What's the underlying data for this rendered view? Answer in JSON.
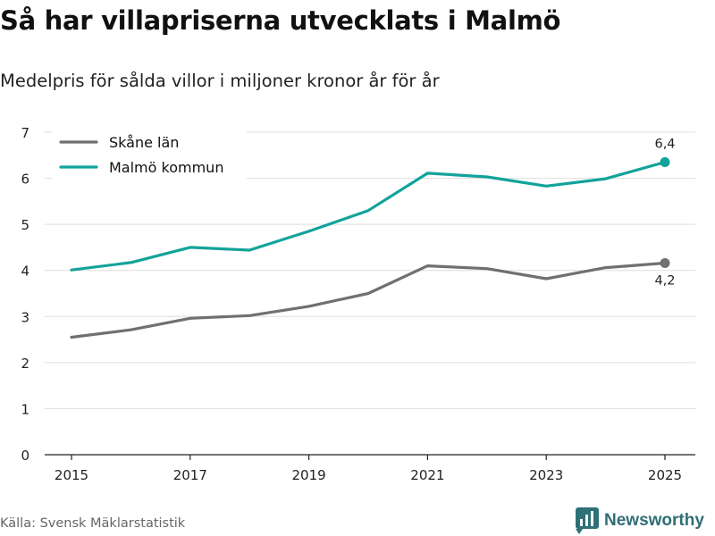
{
  "header": {
    "title": "Så har villapriserna utvecklats i Malmö",
    "subtitle": "Medelpris för sålda villor i miljoner kronor år för år"
  },
  "footer": {
    "source": "Källa: Svensk Mäklarstatistik",
    "brand": "Newsworthy",
    "brand_icon": "bar-chart-logo-icon"
  },
  "colors": {
    "skane": "#707070",
    "malmo": "#12a39a",
    "grid": "#dddddd",
    "axis": "#222222",
    "brand": "#2f6f76"
  },
  "chart_data": {
    "type": "line",
    "title": "Så har villapriserna utvecklats i Malmö",
    "subtitle": "Medelpris för sålda villor i miljoner kronor år för år",
    "xlabel": "",
    "ylabel": "",
    "x": [
      2015,
      2016,
      2017,
      2018,
      2019,
      2020,
      2021,
      2022,
      2023,
      2024,
      2025
    ],
    "xticks": [
      2015,
      2017,
      2019,
      2021,
      2023,
      2025
    ],
    "xlim": [
      2015,
      2025
    ],
    "ylim": [
      0,
      7
    ],
    "yticks": [
      0,
      1,
      2,
      3,
      4,
      5,
      6,
      7
    ],
    "grid": true,
    "legend_position": "top-left",
    "series": [
      {
        "name": "Skåne län",
        "color": "#707070",
        "values": [
          2.55,
          2.71,
          2.96,
          3.02,
          3.22,
          3.5,
          4.1,
          4.04,
          3.82,
          4.06,
          4.16
        ],
        "end_label": "4,2",
        "end_label_position": "below"
      },
      {
        "name": "Malmö kommun",
        "color": "#12a39a",
        "values": [
          4.01,
          4.17,
          4.5,
          4.44,
          4.85,
          5.3,
          6.11,
          6.03,
          5.83,
          5.99,
          6.35
        ],
        "end_label": "6,4",
        "end_label_position": "above"
      }
    ]
  }
}
